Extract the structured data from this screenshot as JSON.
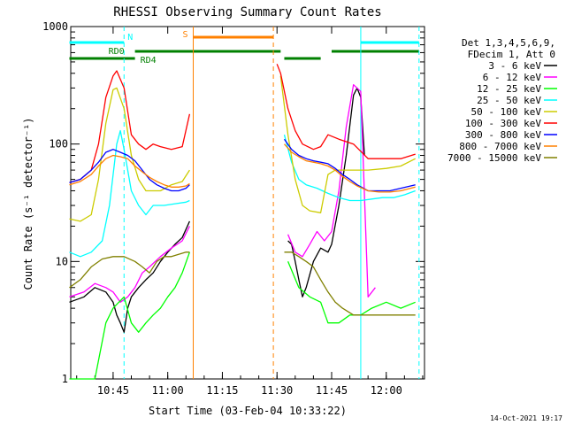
{
  "chart_data": {
    "type": "line",
    "title": "RHESSI Observing Summary Count Rates",
    "xlabel": "Start Time (03-Feb-04 10:33:22)",
    "ylabel": "Count Rate (s⁻¹ detector⁻¹)",
    "yscale": "log",
    "ylim": [
      1,
      1000
    ],
    "xlim": [
      "10:33:22",
      "12:10:30"
    ],
    "x_ticks": [
      "10:45",
      "11:00",
      "11:15",
      "11:30",
      "11:45",
      "12:00"
    ],
    "y_ticks": [
      "1",
      "10",
      "100",
      "1000"
    ],
    "grid": false,
    "legend_position": "right",
    "legend_title": [
      "Det 1,3,4,5,6,9,",
      "FDecim 1, Att 0"
    ],
    "timestamp": "14-Oct-2021 19:17",
    "series": [
      {
        "name": "3 - 6 keV",
        "color": "#000000",
        "points": [
          [
            "10:33",
            4.5
          ],
          [
            "10:37",
            5
          ],
          [
            "10:40",
            6
          ],
          [
            "10:43",
            5.5
          ],
          [
            "10:45",
            4.5
          ],
          [
            "10:46",
            3.5
          ],
          [
            "10:47",
            3
          ],
          [
            "10:48",
            2.5
          ],
          [
            "10:49",
            4
          ],
          [
            "10:50",
            5
          ],
          [
            "10:52",
            6
          ],
          [
            "10:54",
            7
          ],
          [
            "10:56",
            8
          ],
          [
            "10:58",
            10
          ],
          [
            "11:00",
            12
          ],
          [
            "11:02",
            14
          ],
          [
            "11:04",
            16
          ],
          [
            "11:06",
            22
          ],
          [
            "11:33",
            15
          ],
          [
            "11:34",
            14
          ],
          [
            "11:35",
            10
          ],
          [
            "11:36",
            7
          ],
          [
            "11:37",
            5
          ],
          [
            "11:38",
            6
          ],
          [
            "11:40",
            10
          ],
          [
            "11:42",
            13
          ],
          [
            "11:44",
            12
          ],
          [
            "11:45",
            14
          ],
          [
            "11:47",
            30
          ],
          [
            "11:49",
            80
          ],
          [
            "11:51",
            260
          ],
          [
            "11:52",
            300
          ],
          [
            "11:53",
            250
          ],
          [
            "11:54",
            80
          ]
        ]
      },
      {
        "name": "6 - 12 keV",
        "color": "#ff00ff",
        "points": [
          [
            "10:33",
            5
          ],
          [
            "10:37",
            5.5
          ],
          [
            "10:40",
            6.5
          ],
          [
            "10:43",
            6
          ],
          [
            "10:45",
            5.5
          ],
          [
            "10:47",
            4.5
          ],
          [
            "10:49",
            5
          ],
          [
            "10:51",
            6
          ],
          [
            "10:53",
            8
          ],
          [
            "10:55",
            9
          ],
          [
            "10:58",
            11
          ],
          [
            "11:01",
            13
          ],
          [
            "11:04",
            15
          ],
          [
            "11:06",
            20
          ],
          [
            "11:33",
            17
          ],
          [
            "11:35",
            12
          ],
          [
            "11:37",
            11
          ],
          [
            "11:39",
            14
          ],
          [
            "11:41",
            18
          ],
          [
            "11:43",
            15
          ],
          [
            "11:45",
            18
          ],
          [
            "11:47",
            40
          ],
          [
            "11:49",
            140
          ],
          [
            "11:51",
            320
          ],
          [
            "11:53",
            280
          ],
          [
            "11:55",
            5
          ],
          [
            "11:57",
            6
          ]
        ]
      },
      {
        "name": "12 - 25 keV",
        "color": "#00ff00",
        "points": [
          [
            "10:33",
            1
          ],
          [
            "10:37",
            1
          ],
          [
            "10:40",
            1
          ],
          [
            "10:43",
            3
          ],
          [
            "10:45",
            4
          ],
          [
            "10:48",
            5
          ],
          [
            "10:50",
            3
          ],
          [
            "10:52",
            2.5
          ],
          [
            "10:54",
            3
          ],
          [
            "10:56",
            3.5
          ],
          [
            "10:58",
            4
          ],
          [
            "11:00",
            5
          ],
          [
            "11:02",
            6
          ],
          [
            "11:04",
            8
          ],
          [
            "11:06",
            12
          ],
          [
            "11:33",
            10
          ],
          [
            "11:36",
            6
          ],
          [
            "11:39",
            5
          ],
          [
            "11:42",
            4.5
          ],
          [
            "11:44",
            3
          ],
          [
            "11:47",
            3
          ],
          [
            "11:50",
            3.5
          ],
          [
            "11:53",
            3.5
          ],
          [
            "11:56",
            4
          ],
          [
            "12:00",
            4.5
          ],
          [
            "12:04",
            4
          ],
          [
            "12:08",
            4.5
          ]
        ]
      },
      {
        "name": "25 - 50 keV",
        "color": "#00ffff",
        "points": [
          [
            "10:33",
            12
          ],
          [
            "10:36",
            11
          ],
          [
            "10:39",
            12
          ],
          [
            "10:42",
            15
          ],
          [
            "10:44",
            30
          ],
          [
            "10:46",
            100
          ],
          [
            "10:47",
            130
          ],
          [
            "10:48",
            90
          ],
          [
            "10:50",
            40
          ],
          [
            "10:52",
            30
          ],
          [
            "10:54",
            25
          ],
          [
            "10:56",
            30
          ],
          [
            "10:59",
            30
          ],
          [
            "11:02",
            31
          ],
          [
            "11:05",
            32
          ],
          [
            "11:06",
            33
          ],
          [
            "11:32",
            120
          ],
          [
            "11:34",
            70
          ],
          [
            "11:36",
            50
          ],
          [
            "11:38",
            45
          ],
          [
            "11:41",
            42
          ],
          [
            "11:44",
            38
          ],
          [
            "11:47",
            35
          ],
          [
            "11:50",
            33
          ],
          [
            "11:53",
            33
          ],
          [
            "11:56",
            34
          ],
          [
            "11:59",
            35
          ],
          [
            "12:02",
            35
          ],
          [
            "12:05",
            37
          ],
          [
            "12:08",
            40
          ]
        ]
      },
      {
        "name": "50 - 100 keV",
        "color": "#cccc00",
        "points": [
          [
            "10:33",
            23
          ],
          [
            "10:36",
            22
          ],
          [
            "10:39",
            25
          ],
          [
            "10:41",
            50
          ],
          [
            "10:43",
            150
          ],
          [
            "10:45",
            290
          ],
          [
            "10:46",
            300
          ],
          [
            "10:48",
            200
          ],
          [
            "10:50",
            80
          ],
          [
            "10:52",
            50
          ],
          [
            "10:54",
            40
          ],
          [
            "10:56",
            40
          ],
          [
            "10:58",
            40
          ],
          [
            "11:01",
            45
          ],
          [
            "11:04",
            48
          ],
          [
            "11:06",
            60
          ],
          [
            "11:31",
            380
          ],
          [
            "11:33",
            120
          ],
          [
            "11:35",
            50
          ],
          [
            "11:37",
            30
          ],
          [
            "11:39",
            27
          ],
          [
            "11:42",
            26
          ],
          [
            "11:44",
            55
          ],
          [
            "11:46",
            60
          ],
          [
            "11:50",
            60
          ],
          [
            "11:55",
            60
          ],
          [
            "12:00",
            62
          ],
          [
            "12:04",
            65
          ],
          [
            "12:08",
            75
          ]
        ]
      },
      {
        "name": "100 - 300 keV",
        "color": "#ff0000",
        "points": [
          [
            "10:33",
            47
          ],
          [
            "10:36",
            50
          ],
          [
            "10:39",
            60
          ],
          [
            "10:41",
            100
          ],
          [
            "10:43",
            250
          ],
          [
            "10:45",
            380
          ],
          [
            "10:46",
            420
          ],
          [
            "10:48",
            300
          ],
          [
            "10:50",
            120
          ],
          [
            "10:52",
            100
          ],
          [
            "10:54",
            90
          ],
          [
            "10:56",
            100
          ],
          [
            "10:58",
            95
          ],
          [
            "11:01",
            90
          ],
          [
            "11:04",
            95
          ],
          [
            "11:06",
            180
          ],
          [
            "11:30",
            480
          ],
          [
            "11:31",
            400
          ],
          [
            "11:33",
            200
          ],
          [
            "11:35",
            130
          ],
          [
            "11:37",
            100
          ],
          [
            "11:40",
            90
          ],
          [
            "11:42",
            95
          ],
          [
            "11:44",
            120
          ],
          [
            "11:47",
            110
          ],
          [
            "11:51",
            100
          ],
          [
            "11:55",
            75
          ],
          [
            "12:00",
            75
          ],
          [
            "12:04",
            75
          ],
          [
            "12:08",
            82
          ]
        ]
      },
      {
        "name": "300 - 800 keV",
        "color": "#0000ff",
        "points": [
          [
            "10:33",
            47
          ],
          [
            "10:36",
            50
          ],
          [
            "10:39",
            60
          ],
          [
            "10:41",
            70
          ],
          [
            "10:43",
            85
          ],
          [
            "10:45",
            90
          ],
          [
            "10:47",
            85
          ],
          [
            "10:49",
            80
          ],
          [
            "10:51",
            72
          ],
          [
            "10:53",
            60
          ],
          [
            "10:55",
            50
          ],
          [
            "10:57",
            45
          ],
          [
            "10:59",
            42
          ],
          [
            "11:01",
            40
          ],
          [
            "11:03",
            40
          ],
          [
            "11:05",
            42
          ],
          [
            "11:06",
            45
          ],
          [
            "11:32",
            110
          ],
          [
            "11:34",
            90
          ],
          [
            "11:36",
            80
          ],
          [
            "11:38",
            75
          ],
          [
            "11:40",
            72
          ],
          [
            "11:42",
            70
          ],
          [
            "11:44",
            68
          ],
          [
            "11:46",
            62
          ],
          [
            "11:48",
            55
          ],
          [
            "11:50",
            50
          ],
          [
            "11:52",
            45
          ],
          [
            "11:55",
            40
          ],
          [
            "11:58",
            40
          ],
          [
            "12:01",
            40
          ],
          [
            "12:04",
            42
          ],
          [
            "12:08",
            45
          ]
        ]
      },
      {
        "name": "800 - 7000 keV",
        "color": "#ff8000",
        "points": [
          [
            "10:33",
            45
          ],
          [
            "10:36",
            48
          ],
          [
            "10:39",
            55
          ],
          [
            "10:41",
            65
          ],
          [
            "10:43",
            75
          ],
          [
            "10:45",
            80
          ],
          [
            "10:47",
            78
          ],
          [
            "10:49",
            75
          ],
          [
            "10:51",
            65
          ],
          [
            "10:53",
            58
          ],
          [
            "10:55",
            52
          ],
          [
            "10:57",
            48
          ],
          [
            "10:59",
            45
          ],
          [
            "11:01",
            43
          ],
          [
            "11:03",
            43
          ],
          [
            "11:05",
            44
          ],
          [
            "11:06",
            46
          ],
          [
            "11:32",
            100
          ],
          [
            "11:34",
            85
          ],
          [
            "11:36",
            78
          ],
          [
            "11:38",
            72
          ],
          [
            "11:40",
            70
          ],
          [
            "11:42",
            68
          ],
          [
            "11:44",
            65
          ],
          [
            "11:46",
            60
          ],
          [
            "11:48",
            53
          ],
          [
            "11:50",
            48
          ],
          [
            "11:52",
            44
          ],
          [
            "11:55",
            40
          ],
          [
            "11:58",
            39
          ],
          [
            "12:01",
            39
          ],
          [
            "12:04",
            40
          ],
          [
            "12:08",
            43
          ]
        ]
      },
      {
        "name": "7000 - 15000 keV",
        "color": "#808000",
        "points": [
          [
            "10:33",
            6
          ],
          [
            "10:36",
            7
          ],
          [
            "10:39",
            9
          ],
          [
            "10:42",
            10.5
          ],
          [
            "10:45",
            11
          ],
          [
            "10:48",
            11
          ],
          [
            "10:51",
            10
          ],
          [
            "10:53",
            9
          ],
          [
            "10:55",
            8
          ],
          [
            "10:57",
            10
          ],
          [
            "10:59",
            11
          ],
          [
            "11:01",
            11
          ],
          [
            "11:03",
            11.5
          ],
          [
            "11:05",
            12
          ],
          [
            "11:06",
            12
          ],
          [
            "11:32",
            12
          ],
          [
            "11:34",
            12
          ],
          [
            "11:36",
            11
          ],
          [
            "11:38",
            10
          ],
          [
            "11:40",
            9
          ],
          [
            "11:42",
            7
          ],
          [
            "11:44",
            5.5
          ],
          [
            "11:46",
            4.5
          ],
          [
            "11:48",
            4
          ],
          [
            "11:51",
            3.5
          ],
          [
            "11:55",
            3.5
          ],
          [
            "12:00",
            3.5
          ],
          [
            "12:04",
            3.5
          ],
          [
            "12:08",
            3.5
          ]
        ]
      }
    ],
    "status_bars": [
      {
        "label": "N",
        "color": "#00ffff",
        "segments": [
          [
            "10:33",
            "10:48"
          ],
          [
            "11:53",
            "12:09"
          ]
        ]
      },
      {
        "label": "RD0",
        "color": "#008000",
        "segments": [
          [
            "10:51",
            "11:31"
          ],
          [
            "11:45",
            "12:09"
          ]
        ]
      },
      {
        "label": "S",
        "color": "#ff8000",
        "segments": [
          [
            "11:07",
            "11:29"
          ]
        ]
      },
      {
        "label": "RD4",
        "color": "#008000",
        "segments": [
          [
            "10:33",
            "10:51"
          ],
          [
            "11:32",
            "11:42"
          ]
        ]
      }
    ],
    "vertical_markers": [
      {
        "time": "10:48",
        "color": "#00ffff",
        "style": "dashed"
      },
      {
        "time": "11:07",
        "color": "#ff8000",
        "style": "solid"
      },
      {
        "time": "11:29",
        "color": "#ff8000",
        "style": "dashed"
      },
      {
        "time": "11:53",
        "color": "#00ffff",
        "style": "solid"
      },
      {
        "time": "12:09",
        "color": "#00ffff",
        "style": "dashed"
      }
    ]
  }
}
